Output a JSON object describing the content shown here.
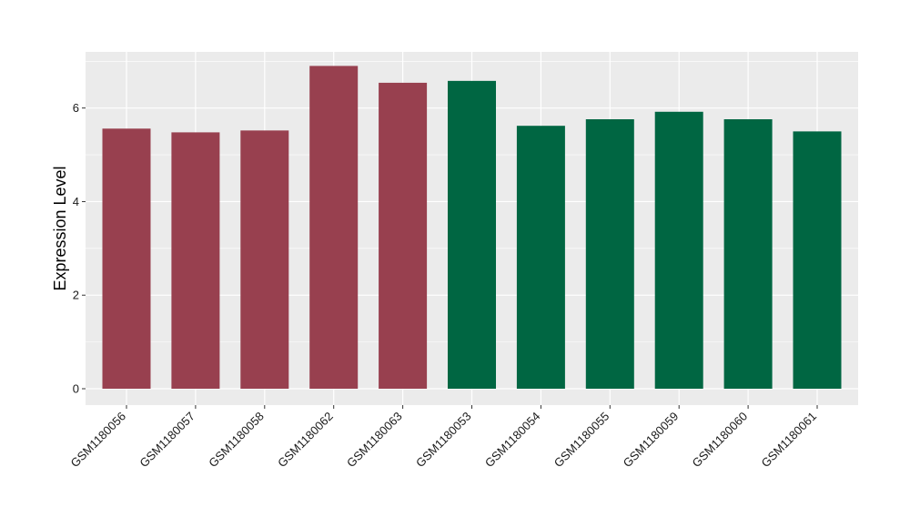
{
  "chart_data": {
    "type": "bar",
    "title": "",
    "xlabel": "",
    "ylabel": "Expression Level",
    "ylim": [
      -0.35,
      7.2
    ],
    "yticks": [
      0,
      2,
      4,
      6
    ],
    "grid": true,
    "categories": [
      "GSM1180056",
      "GSM1180057",
      "GSM1180058",
      "GSM1180062",
      "GSM1180063",
      "GSM1180053",
      "GSM1180054",
      "GSM1180055",
      "GSM1180059",
      "GSM1180060",
      "GSM1180061"
    ],
    "values": [
      5.56,
      5.48,
      5.52,
      6.9,
      6.54,
      6.58,
      5.62,
      5.76,
      5.92,
      5.76,
      5.5
    ],
    "bar_colors": [
      "#98404F",
      "#98404F",
      "#98404F",
      "#98404F",
      "#98404F",
      "#006642",
      "#006642",
      "#006642",
      "#006642",
      "#006642",
      "#006642"
    ],
    "panel_background": "#EBEBEB",
    "grid_color": "#FFFFFF"
  }
}
